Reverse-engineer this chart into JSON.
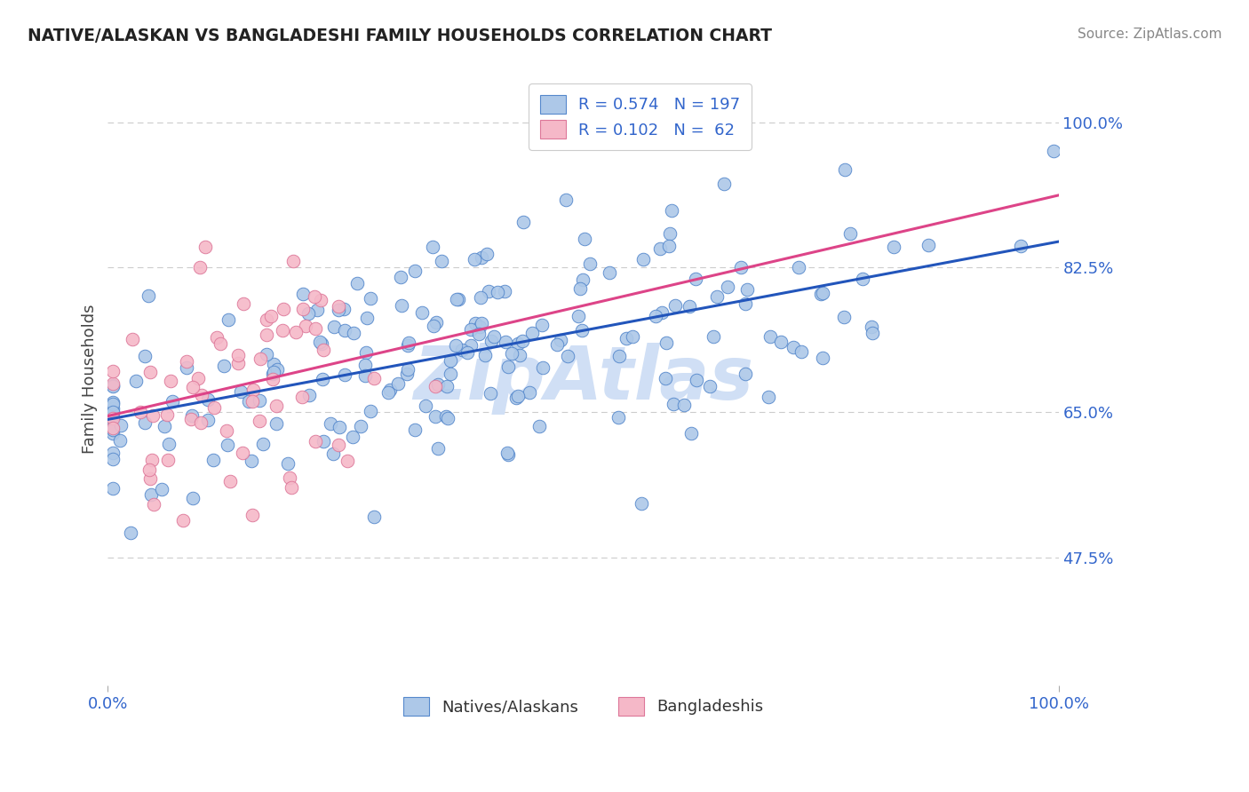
{
  "title": "NATIVE/ALASKAN VS BANGLADESHI FAMILY HOUSEHOLDS CORRELATION CHART",
  "source": "Source: ZipAtlas.com",
  "ylabel": "Family Households",
  "ytick_labels": [
    "47.5%",
    "65.0%",
    "82.5%",
    "100.0%"
  ],
  "ytick_vals": [
    0.475,
    0.65,
    0.825,
    1.0
  ],
  "xlim": [
    0.0,
    1.0
  ],
  "ylim": [
    0.32,
    1.06
  ],
  "blue_R": 0.574,
  "blue_N": 197,
  "pink_R": 0.102,
  "pink_N": 62,
  "blue_color": "#adc8e8",
  "blue_edge_color": "#5588cc",
  "blue_line_color": "#2255bb",
  "pink_color": "#f5b8c8",
  "pink_edge_color": "#dd7799",
  "pink_line_color": "#dd4488",
  "background_color": "#ffffff",
  "grid_color": "#cccccc",
  "title_color": "#222222",
  "axis_color": "#3366cc",
  "watermark_color": "#d0dff5",
  "legend_text_color": "#3366cc",
  "legend_label1": "Natives/Alaskans",
  "legend_label2": "Bangladeshis"
}
